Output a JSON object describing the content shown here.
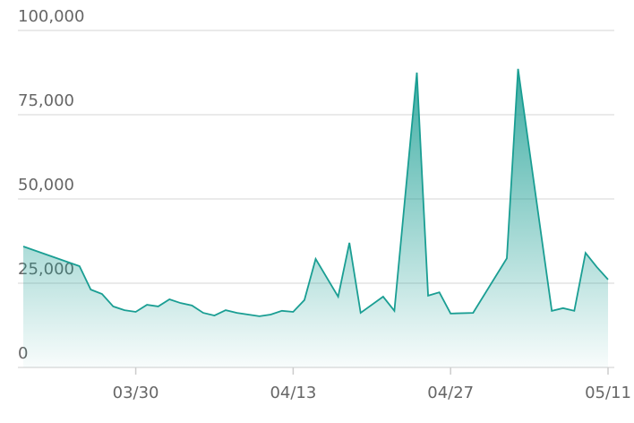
{
  "chart_data": {
    "type": "area",
    "color": "#1a9e93",
    "grid": true,
    "x": [
      "03/20",
      "03/25",
      "03/26",
      "03/27",
      "03/28",
      "03/29",
      "03/30",
      "03/31",
      "04/01",
      "04/02",
      "04/03",
      "04/04",
      "04/05",
      "04/06",
      "04/07",
      "04/08",
      "04/09",
      "04/10",
      "04/11",
      "04/12",
      "04/13",
      "04/14",
      "04/15",
      "04/17",
      "04/18",
      "04/19",
      "04/21",
      "04/22",
      "04/24",
      "04/25",
      "04/26",
      "04/27",
      "04/29",
      "05/02",
      "05/03",
      "05/06",
      "05/07",
      "05/08",
      "05/09",
      "05/10",
      "05/11"
    ],
    "values": [
      35900,
      30050,
      23100,
      21800,
      18100,
      17000,
      16500,
      18600,
      18100,
      20200,
      19100,
      18400,
      16200,
      15400,
      17000,
      16200,
      15700,
      15200,
      15700,
      16800,
      16500,
      20000,
      32200,
      21000,
      37000,
      16200,
      21000,
      16800,
      87500,
      21300,
      22300,
      16000,
      16200,
      32400,
      88600,
      16800,
      17600,
      16800,
      34000,
      29800,
      26100
    ],
    "xlim": [
      "03/20",
      "05/11"
    ],
    "xticks": [
      "03/30",
      "04/13",
      "04/27",
      "05/11"
    ],
    "ylim": [
      0,
      100000
    ],
    "yticks": [
      0,
      {
        "value": 25000,
        "label": "25,000"
      },
      {
        "value": 50000,
        "label": "50,000"
      },
      {
        "value": 75000,
        "label": "75,000"
      },
      {
        "value": 100000,
        "label": "100,000"
      }
    ]
  }
}
